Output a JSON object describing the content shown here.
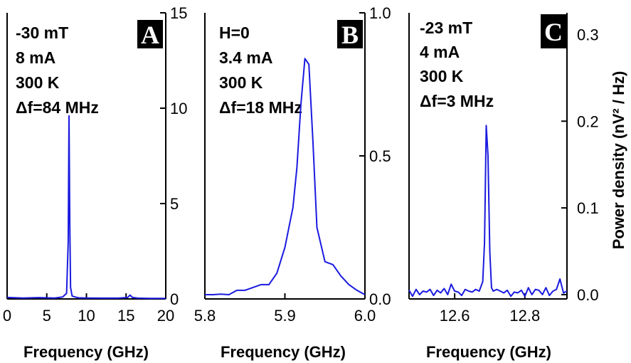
{
  "colors": {
    "line": "#1a1adf",
    "axis": "#000000",
    "label_box": "#000000",
    "label_text": "#ffffff"
  },
  "chart_data": [
    {
      "type": "line",
      "panel_label": "A",
      "annotations": [
        "-30 mT",
        "8 mA",
        "300 K",
        "Δf=84 MHz"
      ],
      "xlabel": "Frequency (GHz)",
      "ylabel": "",
      "xlim": [
        0,
        20
      ],
      "ylim": [
        0,
        15
      ],
      "xticks": [
        0,
        5,
        10,
        15,
        20
      ],
      "xtick_labels": [
        "0",
        "5",
        "10",
        "15",
        "20"
      ],
      "yticks": [
        0,
        5,
        10,
        15
      ],
      "ytick_labels": [
        "0",
        "5",
        "10",
        "15"
      ],
      "x": [
        0,
        2,
        4,
        6,
        7,
        7.5,
        7.7,
        7.8,
        7.9,
        8.0,
        8.2,
        8.6,
        9,
        10,
        12,
        14,
        15.2,
        15.5,
        15.8,
        16.5,
        18,
        20
      ],
      "y": [
        0.08,
        0.05,
        0.07,
        0.05,
        0.1,
        0.3,
        3.0,
        9.6,
        4.0,
        0.6,
        0.15,
        0.1,
        0.06,
        0.05,
        0.04,
        0.04,
        0.08,
        0.2,
        0.08,
        0.04,
        0.03,
        0.03
      ]
    },
    {
      "type": "line",
      "panel_label": "B",
      "annotations": [
        "H=0",
        "3.4 mA",
        "300 K",
        "Δf=18 MHz"
      ],
      "xlabel": "Frequency (GHz)",
      "ylabel": "",
      "xlim": [
        5.8,
        6.0
      ],
      "ylim": [
        0,
        1.0
      ],
      "xticks": [
        5.8,
        5.9,
        6.0
      ],
      "xtick_labels": [
        "5.8",
        "5.9",
        "6.0"
      ],
      "yticks": [
        0,
        0.5,
        1.0
      ],
      "ytick_labels": [
        "0.0",
        "0.5",
        "1.0"
      ],
      "x": [
        5.8,
        5.81,
        5.82,
        5.83,
        5.84,
        5.85,
        5.86,
        5.87,
        5.88,
        5.89,
        5.9,
        5.91,
        5.915,
        5.92,
        5.925,
        5.93,
        5.935,
        5.94,
        5.95,
        5.96,
        5.97,
        5.98,
        5.99,
        6.0
      ],
      "y": [
        0.015,
        0.015,
        0.017,
        0.015,
        0.03,
        0.03,
        0.04,
        0.05,
        0.05,
        0.09,
        0.18,
        0.32,
        0.46,
        0.68,
        0.84,
        0.82,
        0.55,
        0.25,
        0.13,
        0.12,
        0.08,
        0.05,
        0.03,
        0.015
      ]
    },
    {
      "type": "line",
      "panel_label": "C",
      "annotations": [
        "-23 mT",
        "4 mA",
        "300 K",
        "Δf=3 MHz"
      ],
      "xlabel": "Frequency (GHz)",
      "ylabel": "Power density (nV² / Hz)",
      "xlim": [
        12.47,
        12.92
      ],
      "ylim": [
        -0.005,
        0.325
      ],
      "xticks": [
        12.6,
        12.8
      ],
      "xtick_labels": [
        "12.6",
        "12.8"
      ],
      "yticks": [
        0,
        0.1,
        0.2,
        0.3
      ],
      "ytick_labels": [
        "0.0",
        "0.1",
        "0.2",
        "0.3"
      ],
      "x": [
        12.47,
        12.48,
        12.49,
        12.5,
        12.51,
        12.52,
        12.53,
        12.54,
        12.55,
        12.56,
        12.57,
        12.58,
        12.59,
        12.6,
        12.61,
        12.62,
        12.63,
        12.64,
        12.65,
        12.66,
        12.67,
        12.68,
        12.685,
        12.69,
        12.695,
        12.7,
        12.705,
        12.71,
        12.72,
        12.73,
        12.74,
        12.75,
        12.76,
        12.77,
        12.78,
        12.79,
        12.8,
        12.81,
        12.82,
        12.83,
        12.84,
        12.85,
        12.86,
        12.87,
        12.88,
        12.89,
        12.9,
        12.91,
        12.92
      ],
      "y": [
        0.005,
        -0.002,
        0.006,
        0.0,
        0.004,
        0.003,
        0.006,
        -0.001,
        0.005,
        0.002,
        0.007,
        0.0,
        0.012,
        0.004,
        0.003,
        -0.001,
        0.006,
        0.004,
        0.003,
        0.006,
        0.004,
        0.015,
        0.06,
        0.195,
        0.16,
        0.05,
        0.008,
        0.004,
        0.006,
        0.004,
        0.002,
        0.005,
        -0.002,
        0.003,
        0.002,
        0.005,
        -0.002,
        0.008,
        0.0,
        0.006,
        0.005,
        0.0,
        0.008,
        -0.001,
        0.004,
        0.006,
        0.018,
        0.002,
        0.004
      ]
    }
  ]
}
